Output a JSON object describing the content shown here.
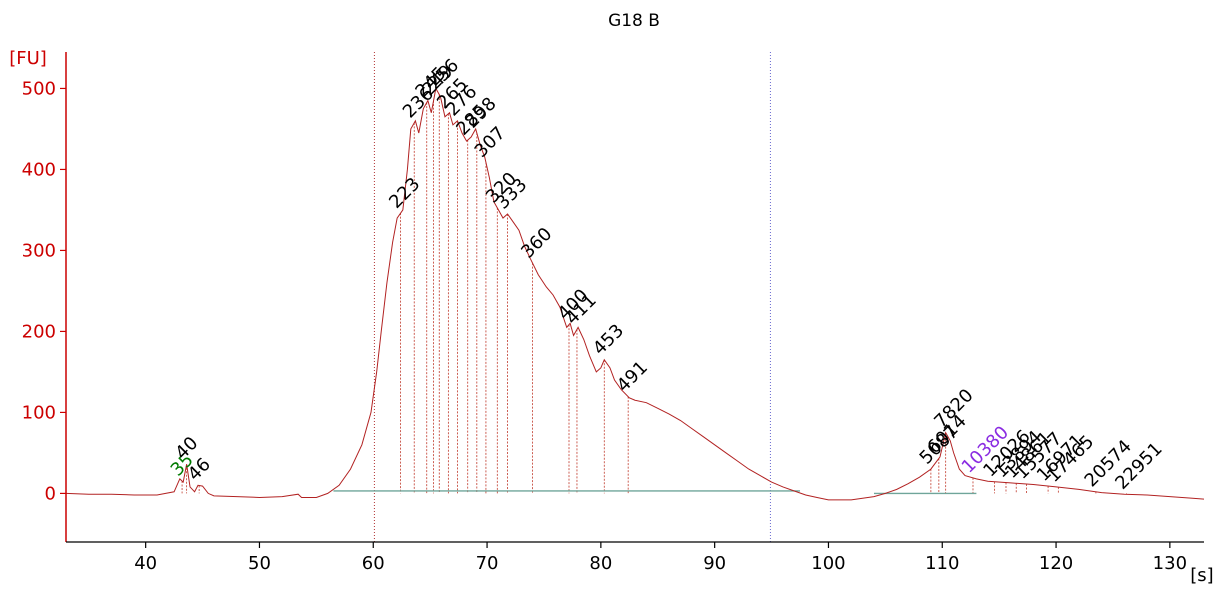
{
  "chart_data": {
    "type": "line",
    "title": "G18 B",
    "ylabel": "[FU]",
    "xlabel": "[s]",
    "xlim": [
      33,
      133
    ],
    "ylim": [
      -60,
      545
    ],
    "x_ticks": [
      40,
      50,
      60,
      70,
      80,
      90,
      100,
      110,
      120,
      130
    ],
    "y_ticks": [
      0,
      100,
      200,
      300,
      400,
      500
    ],
    "grid": false,
    "region_markers": [
      60.1,
      94.9
    ],
    "series": [
      {
        "points": [
          [
            33,
            0
          ],
          [
            35,
            -1
          ],
          [
            37,
            -1
          ],
          [
            39,
            -2
          ],
          [
            41,
            -2
          ],
          [
            42.5,
            2
          ],
          [
            43,
            18
          ],
          [
            43.3,
            14
          ],
          [
            43.6,
            36
          ],
          [
            43.9,
            8
          ],
          [
            44.3,
            2
          ],
          [
            44.6,
            10
          ],
          [
            45,
            9
          ],
          [
            45.5,
            0
          ],
          [
            46,
            -3
          ],
          [
            48,
            -4
          ],
          [
            50,
            -5
          ],
          [
            52,
            -4
          ],
          [
            53.4,
            -1
          ],
          [
            53.7,
            -5
          ],
          [
            55,
            -5
          ],
          [
            56,
            0
          ],
          [
            57,
            10
          ],
          [
            58,
            30
          ],
          [
            59,
            60
          ],
          [
            59.8,
            100
          ],
          [
            60.3,
            150
          ],
          [
            60.7,
            200
          ],
          [
            61.2,
            260
          ],
          [
            61.7,
            310
          ],
          [
            62.1,
            340
          ],
          [
            62.6,
            350
          ],
          [
            63,
            400
          ],
          [
            63.3,
            450
          ],
          [
            63.7,
            460
          ],
          [
            64,
            445
          ],
          [
            64.4,
            475
          ],
          [
            64.8,
            485
          ],
          [
            65.1,
            470
          ],
          [
            65.5,
            500
          ],
          [
            65.9,
            490
          ],
          [
            66.3,
            465
          ],
          [
            66.7,
            470
          ],
          [
            67,
            455
          ],
          [
            67.4,
            460
          ],
          [
            67.8,
            445
          ],
          [
            68.2,
            435
          ],
          [
            68.6,
            440
          ],
          [
            69,
            450
          ],
          [
            69.4,
            430
          ],
          [
            69.8,
            415
          ],
          [
            70.2,
            390
          ],
          [
            70.6,
            360
          ],
          [
            71,
            350
          ],
          [
            71.4,
            340
          ],
          [
            71.8,
            345
          ],
          [
            72.3,
            335
          ],
          [
            72.8,
            325
          ],
          [
            73.3,
            305
          ],
          [
            73.8,
            290
          ],
          [
            74.5,
            270
          ],
          [
            75.2,
            255
          ],
          [
            75.8,
            245
          ],
          [
            76.4,
            230
          ],
          [
            77,
            205
          ],
          [
            77.3,
            210
          ],
          [
            77.6,
            195
          ],
          [
            78,
            205
          ],
          [
            78.5,
            190
          ],
          [
            79,
            170
          ],
          [
            79.6,
            150
          ],
          [
            80,
            155
          ],
          [
            80.3,
            165
          ],
          [
            80.8,
            155
          ],
          [
            81.2,
            140
          ],
          [
            81.8,
            128
          ],
          [
            82.5,
            118
          ],
          [
            83,
            115
          ],
          [
            84,
            112
          ],
          [
            85,
            105
          ],
          [
            86,
            98
          ],
          [
            87,
            90
          ],
          [
            88,
            80
          ],
          [
            89,
            70
          ],
          [
            90,
            60
          ],
          [
            91,
            50
          ],
          [
            92,
            40
          ],
          [
            93,
            30
          ],
          [
            94,
            22
          ],
          [
            95,
            14
          ],
          [
            96,
            8
          ],
          [
            97,
            3
          ],
          [
            98,
            -2
          ],
          [
            99,
            -5
          ],
          [
            100,
            -8
          ],
          [
            102,
            -8
          ],
          [
            104,
            -4
          ],
          [
            105,
            0
          ],
          [
            106,
            5
          ],
          [
            107,
            12
          ],
          [
            108,
            20
          ],
          [
            109,
            30
          ],
          [
            109.8,
            45
          ],
          [
            110.3,
            75
          ],
          [
            110.7,
            65
          ],
          [
            111,
            50
          ],
          [
            111.5,
            30
          ],
          [
            112,
            22
          ],
          [
            113,
            18
          ],
          [
            114,
            15
          ],
          [
            116,
            13
          ],
          [
            118,
            11
          ],
          [
            120,
            8
          ],
          [
            122,
            5
          ],
          [
            124,
            1
          ],
          [
            126,
            -1
          ],
          [
            128,
            -2
          ],
          [
            130,
            -4
          ],
          [
            132,
            -6
          ],
          [
            133,
            -7
          ]
        ]
      }
    ],
    "peaks": [
      {
        "label": "35",
        "x": 43.2,
        "y": 18,
        "color": "#007a00"
      },
      {
        "label": "40",
        "x": 43.6,
        "y": 36,
        "color": "#000000"
      },
      {
        "label": "46",
        "x": 44.7,
        "y": 10,
        "color": "#000000"
      },
      {
        "label": "223",
        "x": 62.4,
        "y": 345,
        "color": "#000000"
      },
      {
        "label": "236",
        "x": 63.6,
        "y": 458,
        "color": "#000000"
      },
      {
        "label": "245",
        "x": 64.7,
        "y": 484,
        "color": "#000000"
      },
      {
        "label": "249",
        "x": 65.3,
        "y": 494,
        "color": "#000000"
      },
      {
        "label": "256",
        "x": 65.8,
        "y": 492,
        "color": "#000000"
      },
      {
        "label": "265",
        "x": 66.6,
        "y": 468,
        "color": "#000000"
      },
      {
        "label": "276",
        "x": 67.4,
        "y": 460,
        "color": "#000000"
      },
      {
        "label": "285",
        "x": 68.3,
        "y": 438,
        "color": "#000000"
      },
      {
        "label": "298",
        "x": 69.1,
        "y": 448,
        "color": "#000000"
      },
      {
        "label": "307",
        "x": 69.9,
        "y": 412,
        "color": "#000000"
      },
      {
        "label": "320",
        "x": 70.9,
        "y": 352,
        "color": "#000000"
      },
      {
        "label": "333",
        "x": 71.8,
        "y": 344,
        "color": "#000000"
      },
      {
        "label": "360",
        "x": 74.0,
        "y": 282,
        "color": "#000000"
      },
      {
        "label": "400",
        "x": 77.2,
        "y": 208,
        "color": "#000000"
      },
      {
        "label": "411",
        "x": 77.9,
        "y": 203,
        "color": "#000000"
      },
      {
        "label": "453",
        "x": 80.3,
        "y": 163,
        "color": "#000000"
      },
      {
        "label": "491",
        "x": 82.4,
        "y": 118,
        "color": "#000000"
      },
      {
        "label": "5087",
        "x": 109.0,
        "y": 32,
        "color": "#000000"
      },
      {
        "label": "6014",
        "x": 109.7,
        "y": 44,
        "color": "#000000"
      },
      {
        "label": "7820",
        "x": 110.3,
        "y": 75,
        "color": "#000000"
      },
      {
        "label": "10380",
        "x": 112.7,
        "y": 20,
        "color": "#8a2be2"
      },
      {
        "label": "12026",
        "x": 114.6,
        "y": 15,
        "color": "#000000"
      },
      {
        "label": "13894",
        "x": 115.6,
        "y": 14,
        "color": "#000000"
      },
      {
        "label": "14861",
        "x": 116.5,
        "y": 13,
        "color": "#000000"
      },
      {
        "label": "15577",
        "x": 117.4,
        "y": 12,
        "color": "#000000"
      },
      {
        "label": "16971",
        "x": 119.3,
        "y": 9,
        "color": "#000000"
      },
      {
        "label": "17465",
        "x": 120.2,
        "y": 8,
        "color": "#000000"
      },
      {
        "label": "20574",
        "x": 123.5,
        "y": 2,
        "color": "#000000"
      },
      {
        "label": "22951",
        "x": 126.2,
        "y": -1,
        "color": "#000000"
      }
    ],
    "baselines": [
      {
        "x0": 56.5,
        "x1": 97.5,
        "y": 3
      },
      {
        "x0": 104,
        "x1": 113,
        "y": 0
      }
    ],
    "colors": {
      "trace": "#b22222",
      "axis": "#cc0000",
      "dropline": "#c0392b",
      "baseline": "#6fa59a",
      "marker_left": "#b03030",
      "marker_right": "#6a6ad0"
    }
  }
}
